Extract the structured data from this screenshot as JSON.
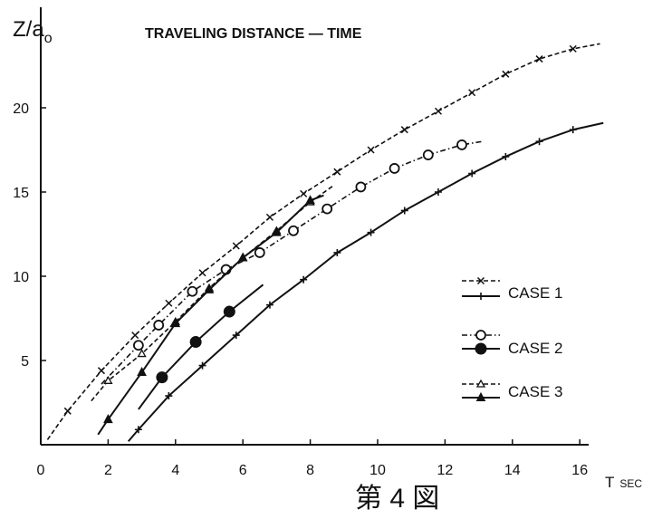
{
  "chart_data": {
    "type": "line",
    "title": "TRAVELING DISTANCE — TIME",
    "ylabel": "Z/a",
    "ylabel_sub": "o",
    "xlabel": "T",
    "xlabel_unit": "SEC",
    "caption": "第 4 図",
    "xlim": [
      0,
      17
    ],
    "ylim": [
      0,
      26
    ],
    "xticks": [
      0,
      2,
      4,
      6,
      8,
      10,
      12,
      14,
      16
    ],
    "yticks": [
      5,
      10,
      15,
      20
    ],
    "legend_position": "right",
    "series": [
      {
        "name": "CASE 1",
        "style": "dashed",
        "marker": "x",
        "x": [
          0.2,
          0.8,
          1.8,
          2.8,
          3.8,
          4.8,
          5.8,
          6.8,
          7.8,
          8.8,
          9.8,
          10.8,
          11.8,
          12.8,
          13.8,
          14.8,
          15.8,
          16.6
        ],
        "y": [
          0.3,
          2.0,
          4.4,
          6.5,
          8.4,
          10.2,
          11.8,
          13.5,
          14.9,
          16.2,
          17.5,
          18.7,
          19.8,
          20.9,
          22.0,
          22.9,
          23.5,
          23.8
        ]
      },
      {
        "name": "CASE 1",
        "style": "solid",
        "marker": "+",
        "x": [
          2.6,
          2.9,
          3.8,
          4.8,
          5.8,
          6.8,
          7.8,
          8.8,
          9.8,
          10.8,
          11.8,
          12.8,
          13.8,
          14.8,
          15.8,
          16.7
        ],
        "y": [
          0.2,
          0.9,
          2.9,
          4.7,
          6.5,
          8.3,
          9.8,
          11.4,
          12.6,
          13.9,
          15.0,
          16.1,
          17.1,
          18.0,
          18.7,
          19.1
        ]
      },
      {
        "name": "CASE 2",
        "style": "dash-dot",
        "marker": "open-circle",
        "x": [
          1.8,
          2.9,
          3.5,
          4.5,
          5.5,
          6.5,
          7.5,
          8.5,
          9.5,
          10.5,
          11.5,
          12.5,
          13.1
        ],
        "y": [
          3.6,
          5.9,
          7.1,
          9.1,
          10.4,
          11.4,
          12.7,
          14.0,
          15.3,
          16.4,
          17.2,
          17.8,
          18.0
        ]
      },
      {
        "name": "CASE 2",
        "style": "solid",
        "marker": "filled-circle",
        "x": [
          2.9,
          3.6,
          4.6,
          5.6,
          6.6
        ],
        "y": [
          2.1,
          4.0,
          6.1,
          7.9,
          9.5
        ]
      },
      {
        "name": "CASE 3",
        "style": "dashed",
        "marker": "open-triangle",
        "x": [
          1.5,
          2.0,
          3.0,
          4.0,
          5.0,
          6.0,
          7.0,
          8.0,
          8.7
        ],
        "y": [
          2.6,
          3.8,
          5.4,
          7.3,
          9.3,
          11.1,
          12.7,
          14.4,
          15.4
        ]
      },
      {
        "name": "CASE 3",
        "style": "solid",
        "marker": "filled-triangle",
        "x": [
          1.7,
          2.0,
          3.0,
          4.0,
          5.0,
          6.0,
          7.0,
          8.0,
          8.4
        ],
        "y": [
          0.6,
          1.5,
          4.3,
          7.2,
          9.2,
          11.1,
          12.6,
          14.5,
          14.8
        ]
      }
    ]
  }
}
